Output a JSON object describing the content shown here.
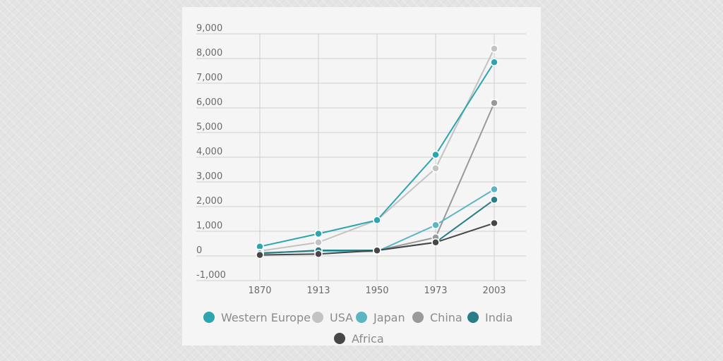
{
  "chart_data": {
    "type": "line",
    "title": "",
    "xlabel": "",
    "ylabel": "",
    "categories": [
      "1870",
      "1913",
      "1950",
      "1973",
      "2003"
    ],
    "ylim": [
      -1000,
      9000
    ],
    "yticks": [
      -1000,
      0,
      1000,
      2000,
      3000,
      4000,
      5000,
      6000,
      7000,
      8000,
      9000
    ],
    "ytick_labels": [
      "-1,000",
      "0",
      "1,000",
      "2,000",
      "3,000",
      "4,000",
      "5,000",
      "6,000",
      "7,000",
      "8,000",
      "9,000"
    ],
    "grid": true,
    "legend_position": "bottom",
    "series": [
      {
        "name": "USA",
        "color": "#c3c3c3",
        "values": [
          200,
          550,
          1450,
          3550,
          8400
        ]
      },
      {
        "name": "Western Europe",
        "color": "#2ca5ae",
        "values": [
          380,
          900,
          1450,
          4100,
          7850
        ]
      },
      {
        "name": "China",
        "color": "#999999",
        "values": [
          130,
          200,
          220,
          750,
          6200
        ]
      },
      {
        "name": "Japan",
        "color": "#5bb5c3",
        "values": [
          120,
          200,
          180,
          1250,
          2700
        ]
      },
      {
        "name": "India",
        "color": "#2a7d87",
        "values": [
          100,
          230,
          230,
          550,
          2280
        ]
      },
      {
        "name": "Africa",
        "color": "#474747",
        "values": [
          40,
          80,
          220,
          550,
          1330
        ]
      }
    ],
    "legend_order": [
      "Western Europe",
      "USA",
      "Japan",
      "China",
      "India",
      "Africa"
    ]
  }
}
